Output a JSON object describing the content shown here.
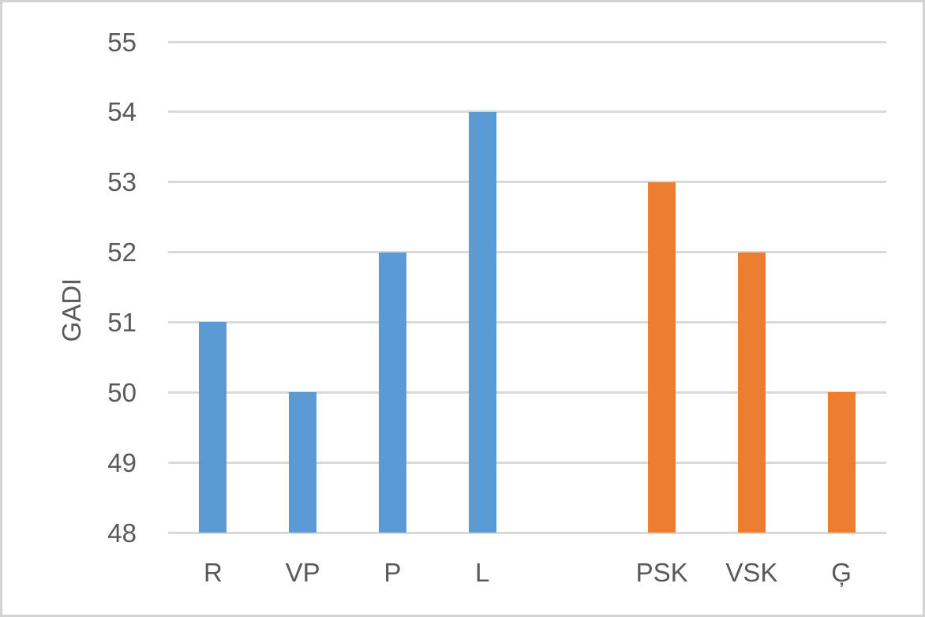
{
  "chart_data": {
    "type": "bar",
    "categories": [
      "R",
      "VP",
      "P",
      "L",
      "",
      "PSK",
      "VSK",
      "Ģ"
    ],
    "values": [
      51,
      50,
      52,
      54,
      null,
      53,
      52,
      50
    ],
    "bar_colors": [
      "#5B9BD5",
      "#5B9BD5",
      "#5B9BD5",
      "#5B9BD5",
      null,
      "#ED7D31",
      "#ED7D31",
      "#ED7D31"
    ],
    "series": [
      {
        "name": "blue-group",
        "color": "#5B9BD5",
        "categories": [
          "R",
          "VP",
          "P",
          "L"
        ],
        "values": [
          51,
          50,
          52,
          54
        ]
      },
      {
        "name": "orange-group",
        "color": "#ED7D31",
        "categories": [
          "PSK",
          "VSK",
          "Ģ"
        ],
        "values": [
          53,
          52,
          50
        ]
      }
    ],
    "title": "",
    "xlabel": "",
    "ylabel": "GADI",
    "ylim": [
      48,
      55
    ],
    "yticks": [
      48,
      49,
      50,
      51,
      52,
      53,
      54,
      55
    ],
    "grid": true,
    "legend": "none",
    "colors": {
      "gridline": "#D9D9D9",
      "axis_text": "#595959",
      "frame_border": "#D3D3D3",
      "background": "#FFFFFF"
    }
  }
}
